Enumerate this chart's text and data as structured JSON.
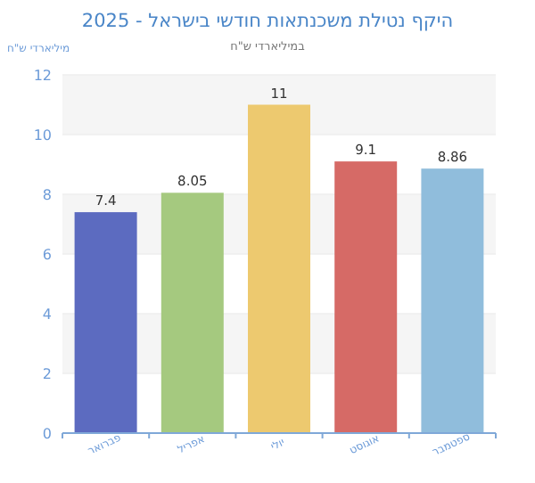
{
  "chart_data": {
    "type": "bar",
    "title": "היקף נטילת משכנתאות חודשי בישראל - 2025",
    "subtitle": "במיליארדי ש\"ח",
    "ylabel": "מיליארדי ש\"ח",
    "categories": [
      "פברואר",
      "אפריל",
      "יולי",
      "אוגוסט",
      "ספטמבר"
    ],
    "values": [
      7.4,
      8.05,
      11,
      9.1,
      8.86
    ],
    "colors": [
      "#5c6bc0",
      "#a5c97f",
      "#edc96f",
      "#d66a66",
      "#90bddc"
    ],
    "ylim": [
      0,
      12
    ],
    "yticks": [
      0,
      2,
      4,
      6,
      8,
      10,
      12
    ],
    "grid": "y",
    "data_labels": true
  }
}
